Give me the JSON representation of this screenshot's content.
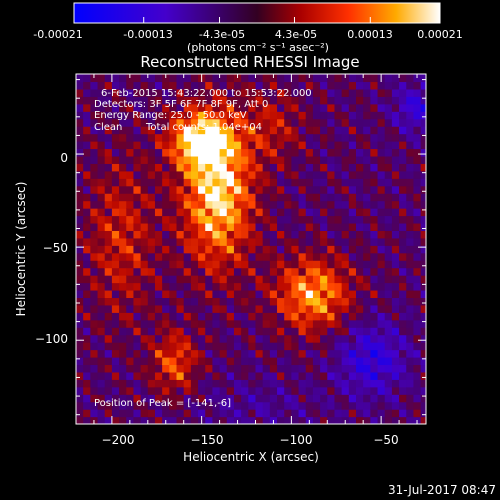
{
  "colorbar": {
    "tick_labels": [
      "-0.00021",
      "-0.00013",
      "-4.3e-05",
      "4.3e-05",
      "0.00013",
      "0.00021"
    ],
    "tick_values": [
      -0.00021,
      -0.00013,
      -4.3e-05,
      4.3e-05,
      0.00013,
      0.00021
    ],
    "range": [
      -0.00021,
      0.00021
    ],
    "unit_label": "(photons cm⁻² s⁻¹ asec⁻²)"
  },
  "title": "Reconstructed RHESSI Image",
  "info": {
    "line1": "6-Feb-2015 15:43:22.000 to 15:53:22.000",
    "line2": "Detectors: 3F 5F 6F 7F 8F 9F, Att 0",
    "line3": "Energy Range: 25.0 - 50.0 keV",
    "line4_left": "Clean",
    "line4_right": "Total counts: 1.04e+04",
    "peak": "Position of Peak = [-141,-6]"
  },
  "footer": {
    "timestamp": "31-Jul-2017 08:47"
  },
  "colors": {
    "scale": [
      "#0000ff",
      "#3a00c8",
      "#5000a0",
      "#8a0000",
      "#ff2000",
      "#ff9000",
      "#ffff20",
      "#ffffff"
    ]
  },
  "chart_data": {
    "type": "heatmap",
    "title": "Reconstructed RHESSI Image",
    "xlabel": "Heliocentric X (arcsec)",
    "ylabel": "Heliocentric Y (arcsec)",
    "x_ticks": [
      -200,
      -150,
      -100,
      -50
    ],
    "x_tick_labels": [
      "−200",
      "−150",
      "−100",
      "−50"
    ],
    "y_ticks": [
      0,
      -50,
      -100
    ],
    "y_tick_labels": [
      "0",
      "−50",
      "−100"
    ],
    "xlim": [
      -220,
      -25
    ],
    "ylim": [
      -145,
      43
    ],
    "peak": [
      -141,
      -6
    ],
    "sources": [
      {
        "x": -141,
        "y": -20,
        "sx": 14,
        "sy": 28,
        "value": 0.00021
      },
      {
        "x": -152,
        "y": 8,
        "sx": 12,
        "sy": 10,
        "value": 0.00018
      },
      {
        "x": -88,
        "y": -75,
        "sx": 15,
        "sy": 14,
        "value": 0.00017
      },
      {
        "x": -165,
        "y": -112,
        "sx": 9,
        "sy": 12,
        "value": 0.00012
      },
      {
        "x": -195,
        "y": -45,
        "sx": 14,
        "sy": 30,
        "value": 9e-05
      },
      {
        "x": -110,
        "y": 15,
        "sx": 12,
        "sy": 14,
        "value": 7e-05
      },
      {
        "x": -55,
        "y": -110,
        "sx": 14,
        "sy": 14,
        "value": -0.00012
      },
      {
        "x": -30,
        "y": 25,
        "sx": 9,
        "sy": 9,
        "value": -0.00011
      },
      {
        "x": -120,
        "y": -135,
        "sx": 25,
        "sy": 10,
        "value": -4e-05
      }
    ]
  }
}
